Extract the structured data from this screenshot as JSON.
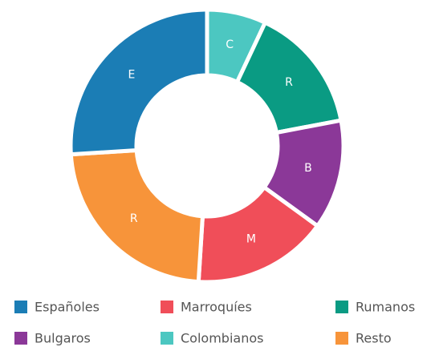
{
  "chart_data": {
    "type": "donut",
    "categories": [
      "Españoles",
      "Marroquíes",
      "Rumanos",
      "Bulgaros",
      "Colombianos",
      "Resto"
    ],
    "values": [
      26,
      16,
      15,
      13,
      7,
      23
    ],
    "segment_labels": [
      "E",
      "M",
      "R",
      "B",
      "C",
      "R"
    ],
    "colors": [
      "#1b7db5",
      "#f04e59",
      "#0a9b83",
      "#8b3898",
      "#4cc7c1",
      "#f7943a"
    ]
  }
}
